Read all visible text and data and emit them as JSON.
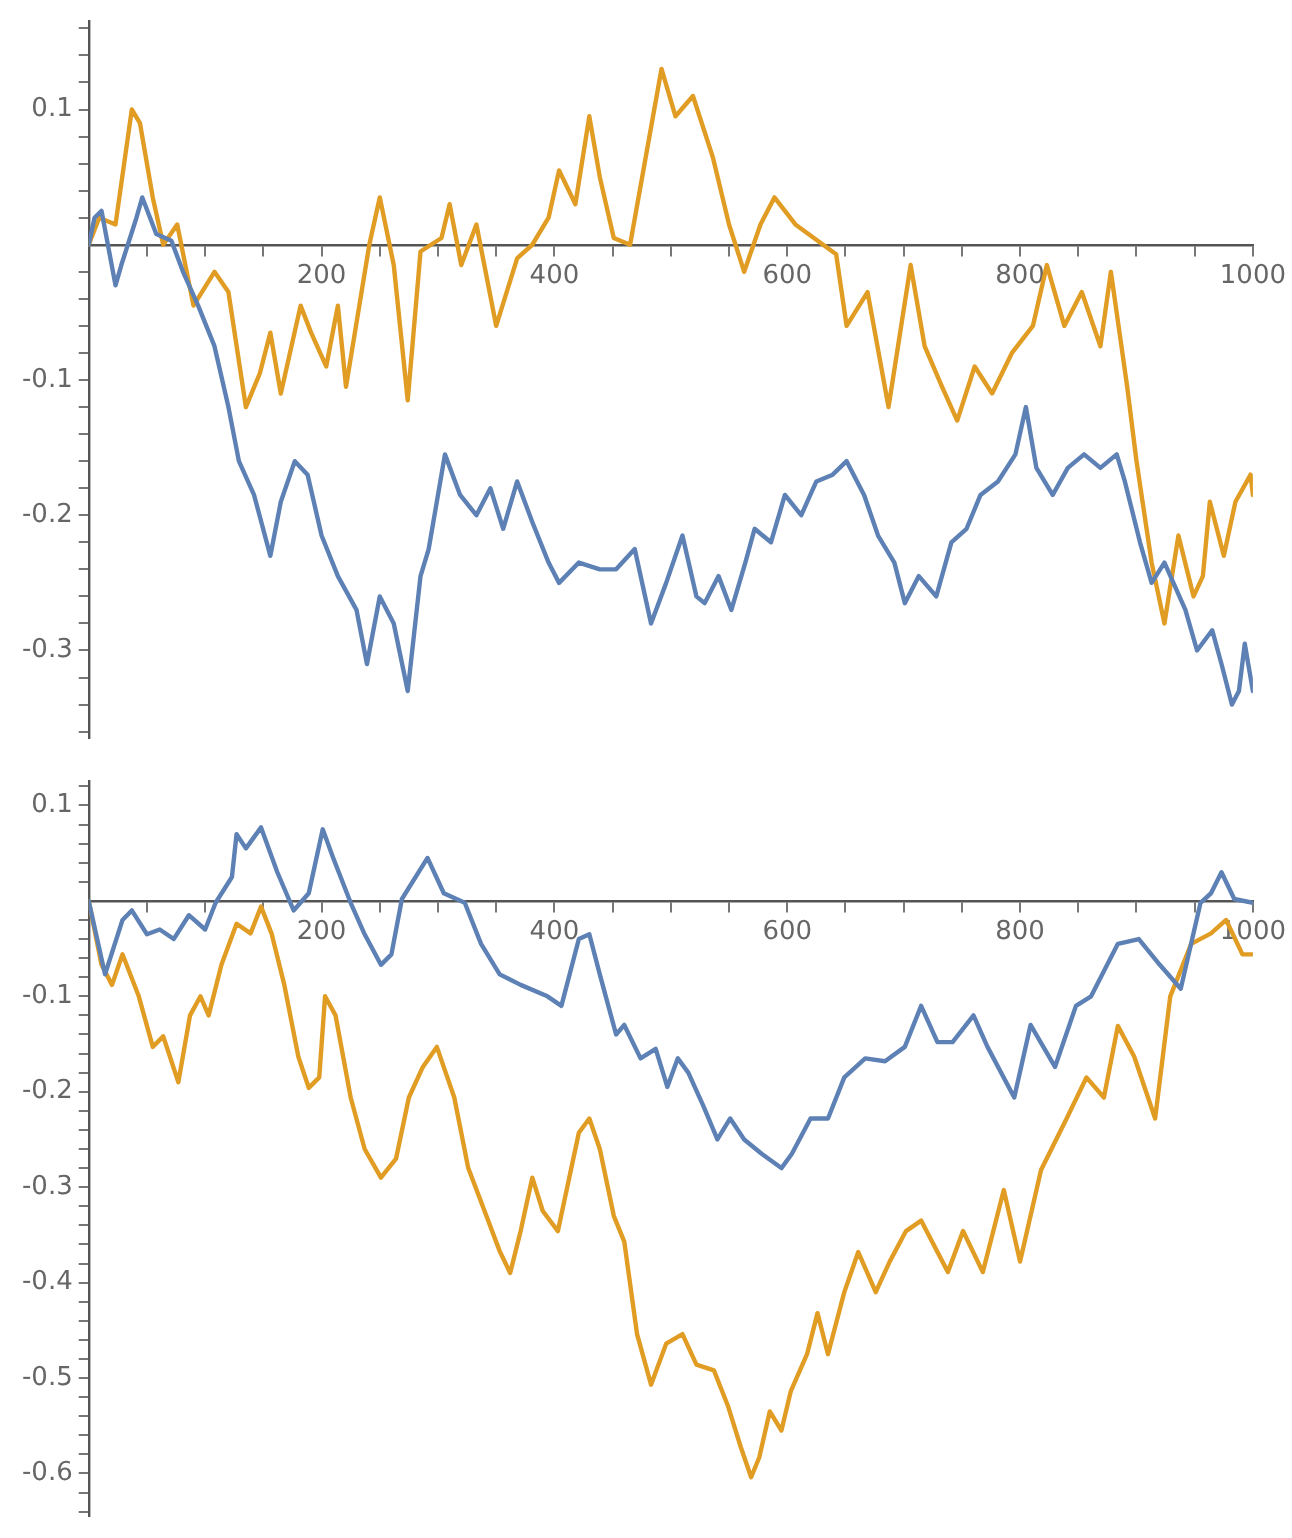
{
  "chart_data": [
    {
      "type": "line",
      "xlim": [
        0,
        1000
      ],
      "ylim": [
        -0.365,
        0.165
      ],
      "xticks": [
        {
          "value": 50,
          "label": null
        },
        {
          "value": 100,
          "label": null
        },
        {
          "value": 150,
          "label": null
        },
        200,
        {
          "value": 250,
          "label": null
        },
        {
          "value": 300,
          "label": null
        },
        {
          "value": 350,
          "label": null
        },
        400,
        {
          "value": 450,
          "label": null
        },
        {
          "value": 500,
          "label": null
        },
        {
          "value": 550,
          "label": null
        },
        600,
        {
          "value": 650,
          "label": null
        },
        {
          "value": 700,
          "label": null
        },
        {
          "value": 750,
          "label": null
        },
        800,
        {
          "value": 850,
          "label": null
        },
        {
          "value": 900,
          "label": null
        },
        {
          "value": 950,
          "label": null
        },
        1000
      ],
      "yticks": [
        {
          "value": 0.16,
          "label": null
        },
        {
          "value": 0.14,
          "label": null
        },
        {
          "value": 0.12,
          "label": null
        },
        0.1,
        {
          "value": 0.08,
          "label": null
        },
        {
          "value": 0.06,
          "label": null
        },
        {
          "value": 0.04,
          "label": null
        },
        {
          "value": 0.02,
          "label": null
        },
        {
          "value": -0.02,
          "label": null
        },
        {
          "value": -0.04,
          "label": null
        },
        {
          "value": -0.06,
          "label": null
        },
        {
          "value": -0.08,
          "label": null
        },
        -0.1,
        {
          "value": -0.12,
          "label": null
        },
        {
          "value": -0.14,
          "label": null
        },
        {
          "value": -0.16,
          "label": null
        },
        {
          "value": -0.18,
          "label": null
        },
        -0.2,
        {
          "value": -0.22,
          "label": null
        },
        {
          "value": -0.24,
          "label": null
        },
        {
          "value": -0.26,
          "label": null
        },
        {
          "value": -0.28,
          "label": null
        },
        -0.3,
        {
          "value": -0.32,
          "label": null
        },
        {
          "value": -0.34,
          "label": null
        },
        {
          "value": -0.36,
          "label": null
        }
      ],
      "series": [
        {
          "color": "#5e81b5",
          "x": [
            0,
            5,
            11,
            23,
            28,
            41,
            46,
            58,
            71,
            81,
            94,
            108,
            120,
            129,
            142,
            156,
            165,
            177,
            188,
            200,
            214,
            230,
            239,
            250,
            262,
            274,
            285,
            292,
            306,
            319,
            333,
            345,
            356,
            368,
            381,
            395,
            404,
            421,
            439,
            453,
            469,
            483,
            496,
            510,
            522,
            529,
            541,
            552,
            564,
            572,
            586,
            598,
            612,
            625,
            639,
            651,
            666,
            678,
            692,
            701,
            713,
            728,
            741,
            754,
            766,
            781,
            796,
            805,
            814,
            828,
            841,
            855,
            869,
            883,
            890,
            903,
            913,
            924,
            942,
            952,
            965,
            973,
            982,
            988,
            993,
            996,
            1000
          ],
          "values": [
            0,
            0.02,
            0.025,
            -0.03,
            -0.015,
            0.02,
            0.035,
            0.008,
            0.003,
            -0.02,
            -0.045,
            -0.075,
            -0.12,
            -0.16,
            -0.185,
            -0.23,
            -0.19,
            -0.16,
            -0.17,
            -0.215,
            -0.245,
            -0.27,
            -0.31,
            -0.26,
            -0.28,
            -0.33,
            -0.245,
            -0.225,
            -0.155,
            -0.185,
            -0.2,
            -0.18,
            -0.21,
            -0.175,
            -0.205,
            -0.235,
            -0.25,
            -0.235,
            -0.24,
            -0.24,
            -0.225,
            -0.28,
            -0.25,
            -0.215,
            -0.26,
            -0.265,
            -0.245,
            -0.27,
            -0.235,
            -0.21,
            -0.22,
            -0.185,
            -0.2,
            -0.175,
            -0.17,
            -0.16,
            -0.185,
            -0.215,
            -0.235,
            -0.265,
            -0.245,
            -0.26,
            -0.22,
            -0.21,
            -0.185,
            -0.175,
            -0.155,
            -0.12,
            -0.165,
            -0.185,
            -0.165,
            -0.155,
            -0.165,
            -0.155,
            -0.175,
            -0.22,
            -0.25,
            -0.235,
            -0.27,
            -0.3,
            -0.285,
            -0.31,
            -0.34,
            -0.33,
            -0.295,
            -0.31,
            -0.33
          ]
        },
        {
          "color": "#e19c24",
          "x": [
            0,
            9,
            23,
            37,
            44,
            55,
            64,
            76,
            90,
            108,
            120,
            135,
            147,
            156,
            165,
            182,
            191,
            204,
            214,
            221,
            241,
            250,
            262,
            274,
            285,
            303,
            310,
            320,
            333,
            350,
            368,
            381,
            395,
            404,
            418,
            430,
            439,
            451,
            465,
            492,
            504,
            519,
            536,
            550,
            563,
            577,
            589,
            607,
            642,
            651,
            669,
            687,
            706,
            718,
            733,
            746,
            761,
            776,
            793,
            811,
            823,
            838,
            853,
            869,
            878,
            892,
            900,
            913,
            924,
            936,
            949,
            957,
            963,
            975,
            985,
            998,
            1000
          ],
          "values": [
            0,
            0.02,
            0.015,
            0.1,
            0.09,
            0.035,
            0,
            0.015,
            -0.045,
            -0.02,
            -0.035,
            -0.12,
            -0.095,
            -0.065,
            -0.11,
            -0.045,
            -0.065,
            -0.09,
            -0.045,
            -0.105,
            0,
            0.035,
            -0.015,
            -0.115,
            -0.005,
            0.005,
            0.03,
            -0.015,
            0.015,
            -0.06,
            -0.01,
            0,
            0.02,
            0.055,
            0.03,
            0.095,
            0.05,
            0.005,
            0,
            0.13,
            0.095,
            0.11,
            0.065,
            0.015,
            -0.02,
            0.015,
            0.035,
            0.015,
            -0.007,
            -0.06,
            -0.035,
            -0.12,
            -0.015,
            -0.075,
            -0.105,
            -0.13,
            -0.09,
            -0.11,
            -0.08,
            -0.06,
            -0.015,
            -0.06,
            -0.035,
            -0.075,
            -0.02,
            -0.105,
            -0.16,
            -0.235,
            -0.28,
            -0.215,
            -0.26,
            -0.245,
            -0.19,
            -0.23,
            -0.19,
            -0.17,
            -0.185
          ]
        }
      ]
    },
    {
      "type": "line",
      "xlim": [
        0,
        1000
      ],
      "ylim": [
        -0.645,
        0.125
      ],
      "xticks": [
        {
          "value": 50,
          "label": null
        },
        {
          "value": 100,
          "label": null
        },
        {
          "value": 150,
          "label": null
        },
        200,
        {
          "value": 250,
          "label": null
        },
        {
          "value": 300,
          "label": null
        },
        {
          "value": 350,
          "label": null
        },
        400,
        {
          "value": 450,
          "label": null
        },
        {
          "value": 500,
          "label": null
        },
        {
          "value": 550,
          "label": null
        },
        600,
        {
          "value": 650,
          "label": null
        },
        {
          "value": 700,
          "label": null
        },
        {
          "value": 750,
          "label": null
        },
        800,
        {
          "value": 850,
          "label": null
        },
        {
          "value": 900,
          "label": null
        },
        {
          "value": 950,
          "label": null
        },
        1000
      ],
      "yticks": [
        {
          "value": 0.12,
          "label": null
        },
        0.1,
        {
          "value": 0.08,
          "label": null
        },
        {
          "value": 0.06,
          "label": null
        },
        {
          "value": 0.04,
          "label": null
        },
        {
          "value": 0.02,
          "label": null
        },
        {
          "value": -0.02,
          "label": null
        },
        {
          "value": -0.04,
          "label": null
        },
        {
          "value": -0.06,
          "label": null
        },
        {
          "value": -0.08,
          "label": null
        },
        -0.1,
        {
          "value": -0.12,
          "label": null
        },
        {
          "value": -0.14,
          "label": null
        },
        {
          "value": -0.16,
          "label": null
        },
        {
          "value": -0.18,
          "label": null
        },
        -0.2,
        {
          "value": -0.22,
          "label": null
        },
        {
          "value": -0.24,
          "label": null
        },
        {
          "value": -0.26,
          "label": null
        },
        {
          "value": -0.28,
          "label": null
        },
        -0.3,
        {
          "value": -0.32,
          "label": null
        },
        {
          "value": -0.34,
          "label": null
        },
        {
          "value": -0.36,
          "label": null
        },
        {
          "value": -0.38,
          "label": null
        },
        -0.4,
        {
          "value": -0.42,
          "label": null
        },
        {
          "value": -0.44,
          "label": null
        },
        {
          "value": -0.46,
          "label": null
        },
        {
          "value": -0.48,
          "label": null
        },
        -0.5,
        {
          "value": -0.52,
          "label": null
        },
        {
          "value": -0.54,
          "label": null
        },
        {
          "value": -0.56,
          "label": null
        },
        {
          "value": -0.58,
          "label": null
        },
        -0.6,
        {
          "value": -0.62,
          "label": null
        },
        {
          "value": -0.64,
          "label": null
        }
      ],
      "series": [
        {
          "color": "#5e81b5",
          "x": [
            0,
            14,
            29,
            37,
            50,
            61,
            73,
            86,
            100,
            109,
            123,
            127,
            135,
            148,
            162,
            176,
            189,
            201,
            210,
            225,
            237,
            251,
            260,
            269,
            291,
            305,
            323,
            337,
            353,
            371,
            394,
            406,
            421,
            430,
            439,
            453,
            460,
            474,
            487,
            497,
            506,
            515,
            528,
            540,
            551,
            563,
            578,
            595,
            604,
            620,
            635,
            649,
            667,
            684,
            701,
            715,
            729,
            742,
            760,
            772,
            795,
            809,
            830,
            848,
            861,
            884,
            902,
            920,
            938,
            955,
            964,
            973,
            984,
            1000
          ],
          "values": [
            0,
            -0.077,
            -0.02,
            -0.01,
            -0.035,
            -0.03,
            -0.04,
            -0.015,
            -0.03,
            -0.002,
            0.025,
            0.07,
            0.055,
            0.077,
            0.03,
            -0.01,
            0.008,
            0.075,
            0.045,
            -0.002,
            -0.035,
            -0.067,
            -0.056,
            0.002,
            0.045,
            0.008,
            -0.002,
            -0.045,
            -0.077,
            -0.088,
            -0.1,
            -0.11,
            -0.04,
            -0.035,
            -0.077,
            -0.14,
            -0.13,
            -0.165,
            -0.155,
            -0.195,
            -0.165,
            -0.18,
            -0.215,
            -0.25,
            -0.228,
            -0.25,
            -0.265,
            -0.28,
            -0.265,
            -0.228,
            -0.228,
            -0.185,
            -0.165,
            -0.168,
            -0.153,
            -0.11,
            -0.148,
            -0.148,
            -0.12,
            -0.153,
            -0.206,
            -0.13,
            -0.174,
            -0.11,
            -0.1,
            -0.045,
            -0.04,
            -0.067,
            -0.092,
            -0.002,
            0.008,
            0.03,
            0.002,
            -0.002
          ]
        },
        {
          "color": "#e19c24",
          "x": [
            0,
            11,
            20,
            29,
            43,
            55,
            64,
            77,
            87,
            96,
            103,
            114,
            127,
            139,
            148,
            157,
            168,
            180,
            189,
            198,
            203,
            212,
            225,
            237,
            251,
            264,
            275,
            287,
            299,
            314,
            326,
            340,
            353,
            362,
            371,
            381,
            390,
            403,
            421,
            430,
            439,
            451,
            460,
            471,
            483,
            496,
            510,
            522,
            537,
            549,
            560,
            569,
            576,
            585,
            595,
            603,
            617,
            626,
            635,
            649,
            661,
            676,
            688,
            702,
            715,
            738,
            751,
            768,
            786,
            800,
            818,
            840,
            857,
            872,
            884,
            898,
            916,
            929,
            947,
            964,
            977,
            991,
            1000
          ],
          "values": [
            0,
            -0.067,
            -0.088,
            -0.056,
            -0.1,
            -0.153,
            -0.142,
            -0.19,
            -0.12,
            -0.1,
            -0.12,
            -0.067,
            -0.024,
            -0.034,
            -0.006,
            -0.034,
            -0.088,
            -0.163,
            -0.196,
            -0.185,
            -0.1,
            -0.12,
            -0.206,
            -0.26,
            -0.29,
            -0.27,
            -0.206,
            -0.174,
            -0.153,
            -0.206,
            -0.28,
            -0.325,
            -0.367,
            -0.39,
            -0.346,
            -0.29,
            -0.325,
            -0.346,
            -0.243,
            -0.228,
            -0.26,
            -0.33,
            -0.357,
            -0.454,
            -0.507,
            -0.464,
            -0.454,
            -0.486,
            -0.492,
            -0.529,
            -0.572,
            -0.604,
            -0.583,
            -0.535,
            -0.555,
            -0.514,
            -0.475,
            -0.432,
            -0.475,
            -0.41,
            -0.368,
            -0.41,
            -0.378,
            -0.346,
            -0.335,
            -0.389,
            -0.346,
            -0.389,
            -0.303,
            -0.378,
            -0.282,
            -0.228,
            -0.185,
            -0.206,
            -0.131,
            -0.163,
            -0.228,
            -0.1,
            -0.045,
            -0.034,
            -0.02,
            -0.056,
            -0.056
          ]
        }
      ]
    }
  ]
}
